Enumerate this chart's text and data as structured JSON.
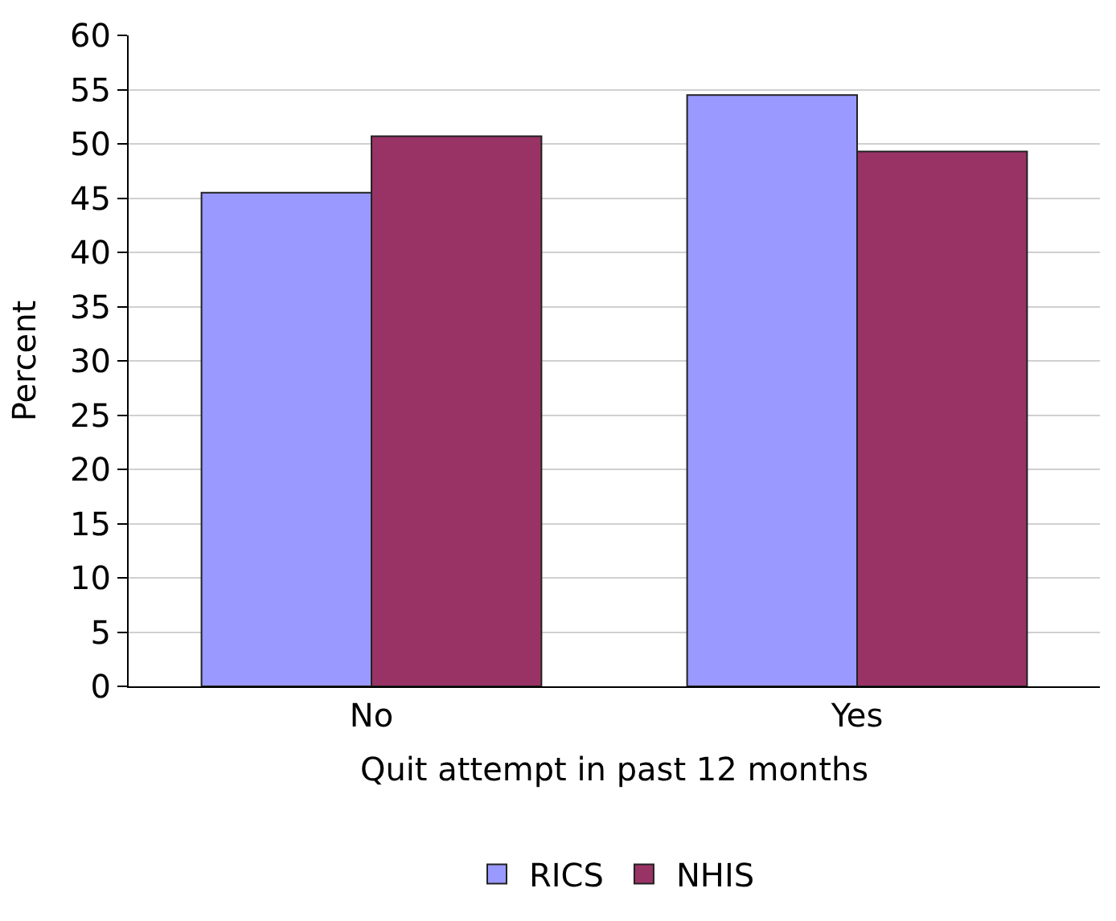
{
  "chart_data": {
    "type": "bar",
    "xlabel": "Quit attempt in past 12 months",
    "ylabel": "Percent",
    "categories": [
      "No",
      "Yes"
    ],
    "series": [
      {
        "name": "RICS",
        "color": "#9999ff",
        "values": [
          45.5,
          54.5
        ]
      },
      {
        "name": "NHIS",
        "color": "#993366",
        "values": [
          50.7,
          49.3
        ]
      }
    ],
    "ylim": [
      0,
      60
    ],
    "yticks": [
      0,
      5,
      10,
      15,
      20,
      25,
      30,
      35,
      40,
      45,
      50,
      55,
      60
    ],
    "grid": "y",
    "legend": "bottom"
  }
}
